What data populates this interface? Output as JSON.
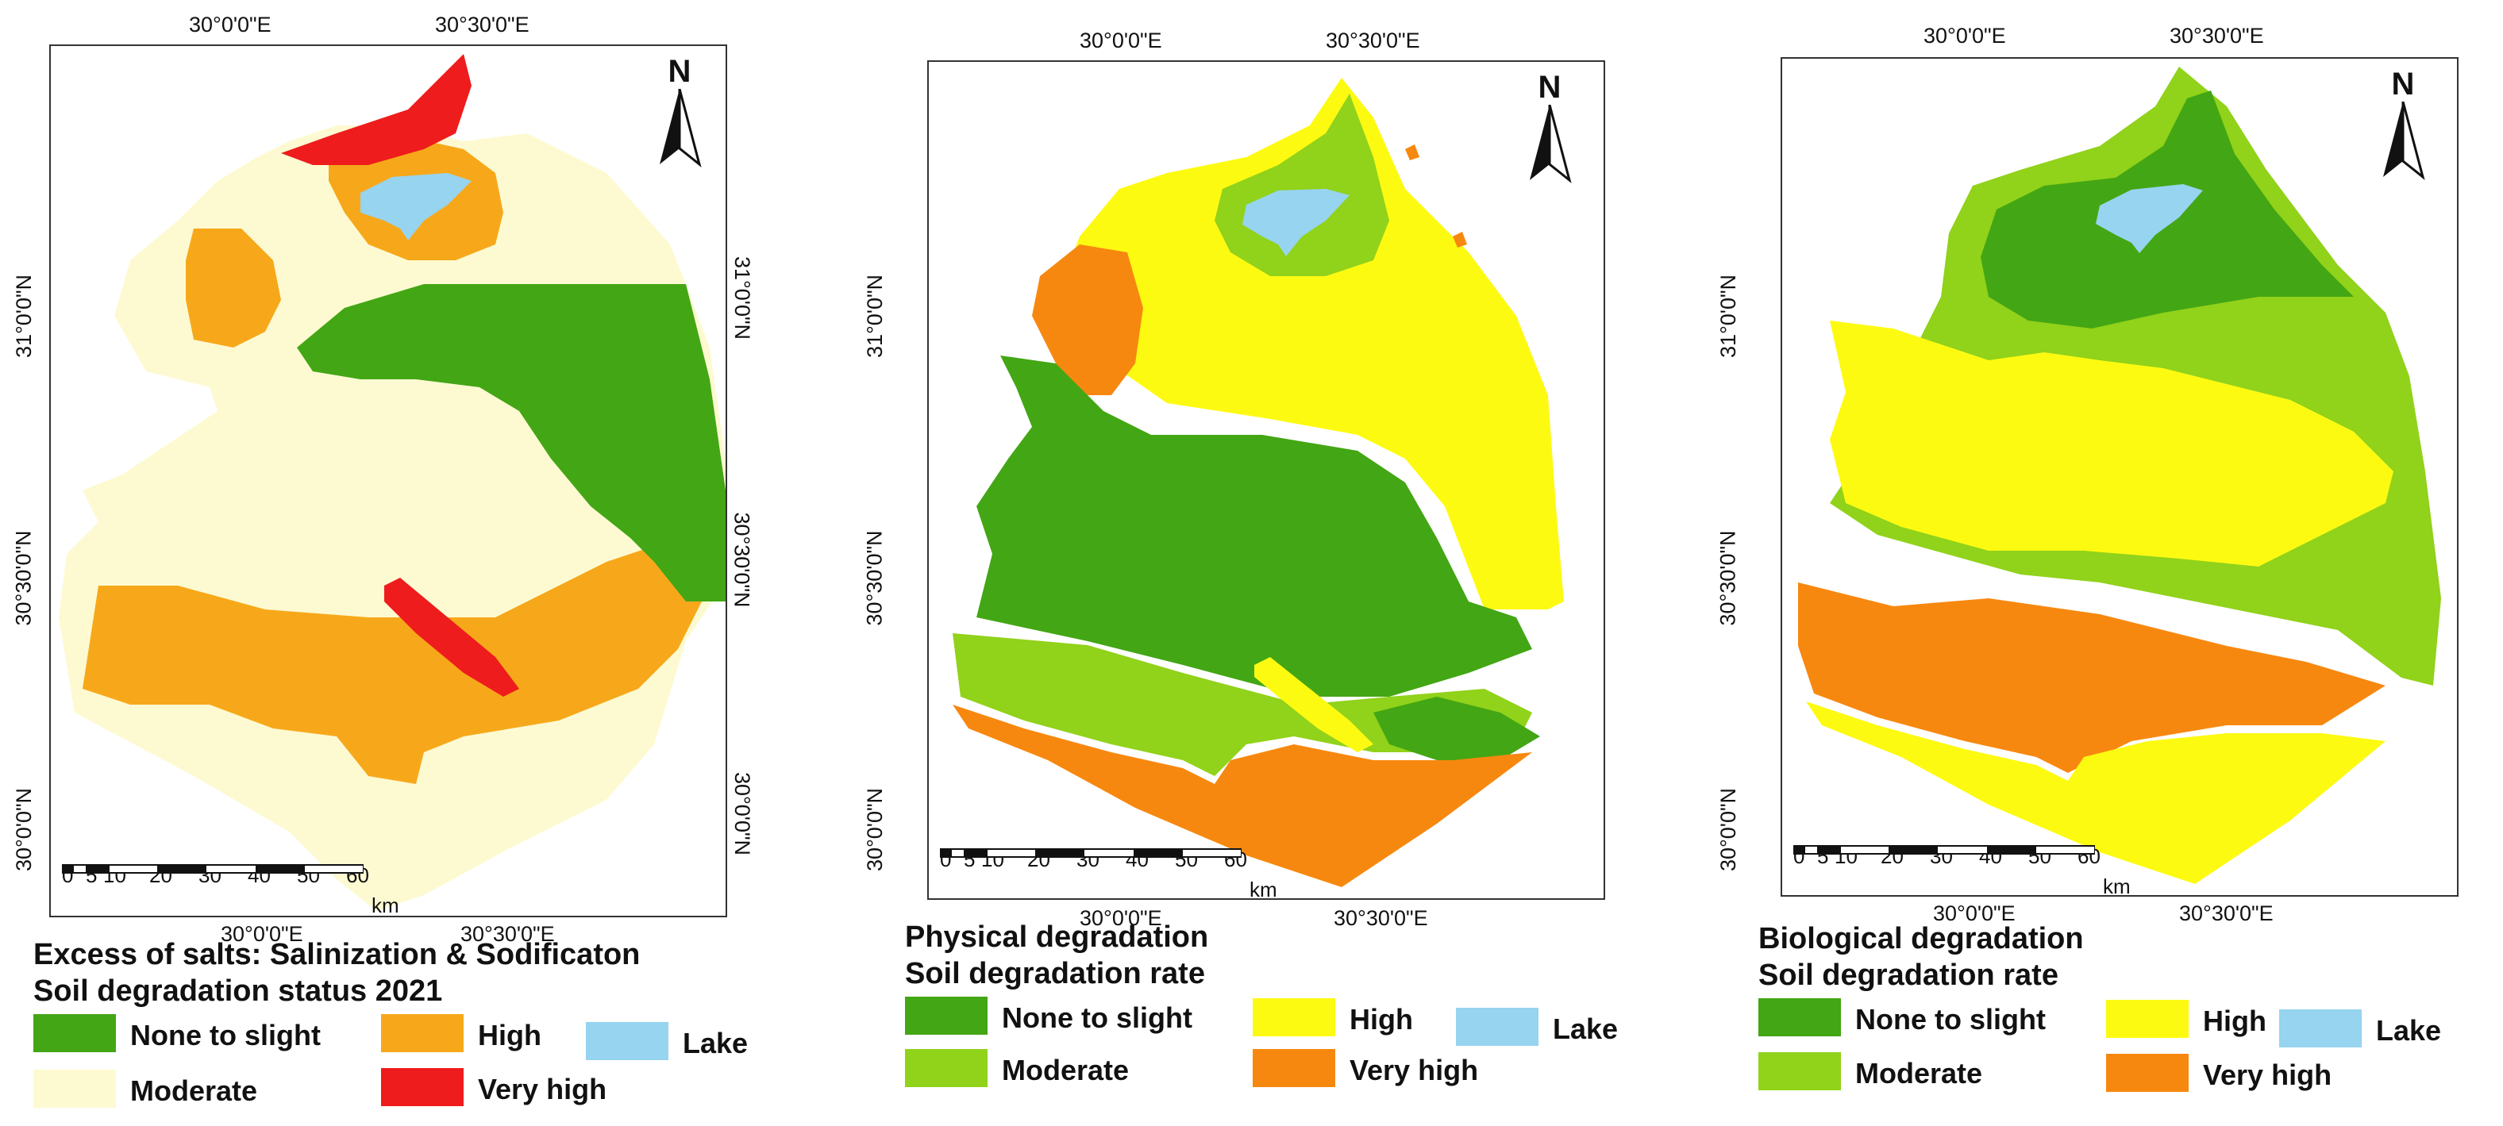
{
  "colors": {
    "none_to_slight": "#43a614",
    "moderate_light": "#fdfad2",
    "high_orange": "#f7a81a",
    "very_high_red": "#ee1c1c",
    "moderate_green": "#91d21a",
    "high_yellow": "#fdfa12",
    "very_high_orange": "#f7880f",
    "lake": "#96d4ef"
  },
  "coords": {
    "lon_a": "30°0'0\"E",
    "lon_b": "30°30'0\"E",
    "lat_a": "31°0'0\"N",
    "lat_b": "30°30'0\"N",
    "lat_c": "30°0'0\"N"
  },
  "north_label": "N",
  "scale": {
    "ticks": [
      "0",
      "5",
      "10",
      "20",
      "30",
      "40",
      "50",
      "60"
    ],
    "unit": "km"
  },
  "maps": [
    {
      "title_line1": "Excess of salts: Salinization & Sodificaton",
      "title_line2": "Soil degradation status 2021",
      "legend": [
        {
          "label": "None to slight",
          "color": "#43a614"
        },
        {
          "label": "High",
          "color": "#f7a81a"
        },
        {
          "label": "Lake",
          "color": "#96d4ef"
        },
        {
          "label": "Moderate",
          "color": "#fdfad2"
        },
        {
          "label": "Very high",
          "color": "#ee1c1c"
        }
      ]
    },
    {
      "title_line1": "Physical degradation",
      "title_line2": "Soil degradation rate",
      "legend": [
        {
          "label": "None to slight",
          "color": "#43a614"
        },
        {
          "label": "High",
          "color": "#fdfa12"
        },
        {
          "label": "Lake",
          "color": "#96d4ef"
        },
        {
          "label": "Moderate",
          "color": "#91d21a"
        },
        {
          "label": "Very high",
          "color": "#f7880f"
        }
      ]
    },
    {
      "title_line1": "Biological degradation",
      "title_line2": "Soil degradation rate",
      "legend": [
        {
          "label": "None to slight",
          "color": "#43a614"
        },
        {
          "label": "High",
          "color": "#fdfa12"
        },
        {
          "label": "Lake",
          "color": "#96d4ef"
        },
        {
          "label": "Moderate",
          "color": "#91d21a"
        },
        {
          "label": "Very high",
          "color": "#f7880f"
        }
      ]
    }
  ]
}
